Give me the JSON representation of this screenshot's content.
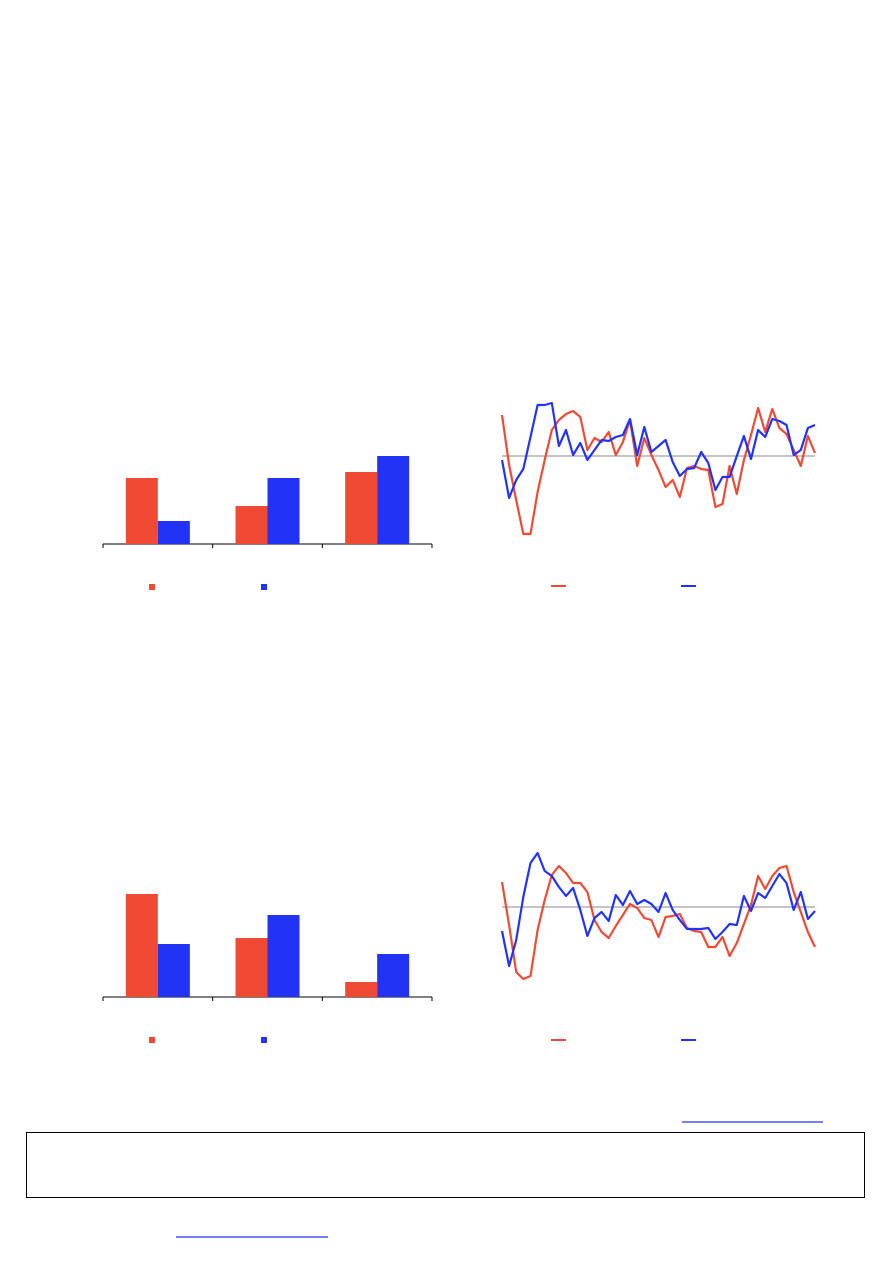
{
  "chart_data": [
    {
      "type": "bar",
      "categories": [
        null,
        null,
        null
      ],
      "ylim": [
        0,
        100
      ],
      "series": [
        {
          "color": "#f04a35",
          "values": [
            66,
            38,
            72
          ]
        },
        {
          "color": "#2233f5",
          "values": [
            23,
            66,
            88
          ]
        }
      ]
    },
    {
      "type": "line",
      "ylim": [
        -90,
        60
      ],
      "reference_line": 0,
      "series": [
        {
          "color": "#f04a35",
          "values": [
            41,
            -9,
            -44,
            -78,
            -78,
            -36,
            -4,
            26,
            36,
            42,
            45,
            39,
            6,
            18,
            14,
            24,
            1,
            14,
            36,
            -10,
            18,
            1,
            -14,
            -31,
            -24,
            -41,
            -12,
            -10,
            -13,
            -14,
            -51,
            -48,
            -10,
            -38,
            -4,
            21,
            48,
            24,
            47,
            28,
            22,
            6,
            -10,
            20,
            3
          ]
        },
        {
          "color": "#2233f5",
          "values": [
            -4,
            -42,
            -24,
            -13,
            19,
            51,
            51,
            53,
            10,
            26,
            1,
            13,
            -4,
            6,
            16,
            15,
            19,
            21,
            37,
            1,
            29,
            4,
            10,
            16,
            -6,
            -20,
            -13,
            -12,
            4,
            -7,
            -34,
            -21,
            -21,
            0,
            20,
            -3,
            26,
            19,
            37,
            35,
            31,
            1,
            6,
            28,
            31
          ]
        }
      ]
    },
    {
      "type": "bar",
      "categories": [
        null,
        null,
        null
      ],
      "ylim": [
        0,
        110
      ],
      "series": [
        {
          "color": "#f04a35",
          "values": [
            103,
            59,
            15
          ]
        },
        {
          "color": "#2233f5",
          "values": [
            53,
            82,
            43
          ]
        }
      ]
    },
    {
      "type": "line",
      "ylim": [
        -80,
        60
      ],
      "reference_line": 0,
      "series": [
        {
          "color": "#f04a35",
          "values": [
            25,
            -18,
            -65,
            -72,
            -69,
            -23,
            7,
            32,
            41,
            34,
            24,
            24,
            15,
            -13,
            -25,
            -31,
            -19,
            -8,
            3,
            -1,
            -11,
            -13,
            -30,
            -10,
            -9,
            -7,
            -21,
            -24,
            -25,
            -40,
            -40,
            -30,
            -49,
            -36,
            -17,
            2,
            31,
            18,
            31,
            39,
            41,
            15,
            -5,
            -25,
            -40
          ]
        },
        {
          "color": "#2233f5",
          "values": [
            -24,
            -59,
            -33,
            10,
            44,
            54,
            36,
            31,
            20,
            11,
            19,
            -3,
            -29,
            -11,
            -5,
            -14,
            12,
            2,
            16,
            3,
            7,
            3,
            -5,
            14,
            -3,
            -13,
            -22,
            -22,
            -22,
            -21,
            -32,
            -25,
            -17,
            -18,
            11,
            -4,
            14,
            9,
            21,
            33,
            24,
            -3,
            15,
            -12,
            -4
          ]
        }
      ]
    }
  ]
}
